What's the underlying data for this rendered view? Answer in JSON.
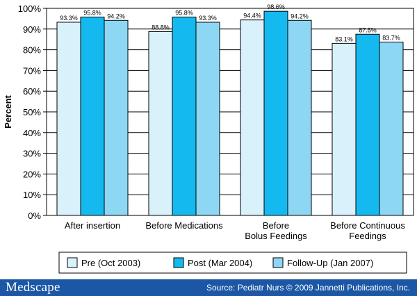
{
  "colors": {
    "pre": "#d8f1fb",
    "post": "#14b9ef",
    "followup": "#8dd6f4",
    "footer": "#1c57a5"
  },
  "chart_data": {
    "type": "bar",
    "title": "",
    "xlabel": "",
    "ylabel": "Percent",
    "ylim": [
      0,
      100
    ],
    "yticks": [
      0,
      10,
      20,
      30,
      40,
      50,
      60,
      70,
      80,
      90,
      100
    ],
    "ytick_labels": [
      "0%",
      "10%",
      "20%",
      "30%",
      "40%",
      "50%",
      "60%",
      "70%",
      "80%",
      "90%",
      "100%"
    ],
    "grid": true,
    "categories": [
      [
        "After insertion"
      ],
      [
        "Before Medications"
      ],
      [
        "Before",
        "Bolus Feedings"
      ],
      [
        "Before Continuous",
        "Feedings"
      ]
    ],
    "series": [
      {
        "name": "Pre (Oct 2003)",
        "values": [
          93.3,
          88.8,
          94.4,
          83.1
        ],
        "labels": [
          "93.3%",
          "88.8%",
          "94.4%",
          "83.1%"
        ]
      },
      {
        "name": "Post (Mar 2004)",
        "values": [
          95.8,
          95.8,
          98.6,
          87.5
        ],
        "labels": [
          "95.8%",
          "95.8%",
          "98.6%",
          "87.5%"
        ]
      },
      {
        "name": "Follow-Up (Jan 2007)",
        "values": [
          94.2,
          93.3,
          94.2,
          83.7
        ],
        "labels": [
          "94.2%",
          "93.3%",
          "94.2%",
          "83.7%"
        ]
      }
    ],
    "legend_position": "bottom"
  },
  "footer": {
    "brand": "Medscape",
    "source": "Source: Pediatr Nurs © 2009 Jannetti Publications, Inc."
  }
}
